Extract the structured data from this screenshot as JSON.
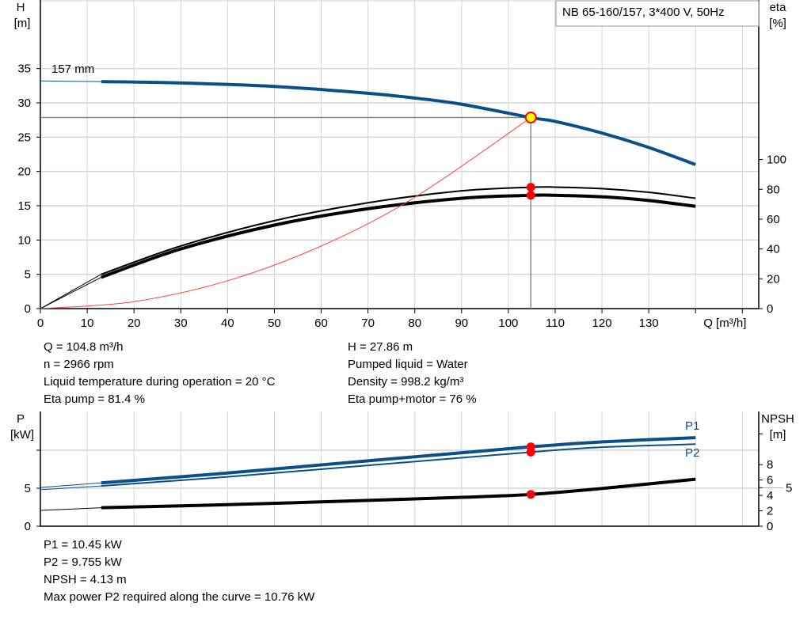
{
  "chart_data": [
    {
      "type": "line",
      "title": "NB 65-160/157, 3*400 V, 50Hz",
      "xlabel": "Q [m³/h]",
      "ylabel": "H\n[m]",
      "ylabel_lines": [
        "H",
        "[m]"
      ],
      "y2label_lines": [
        "eta",
        "[%]"
      ],
      "xlim": [
        0,
        153.5
      ],
      "ylim": [
        0,
        45
      ],
      "y2lim": [
        0,
        207
      ],
      "x_ticks": [
        0,
        10,
        20,
        30,
        40,
        50,
        60,
        70,
        80,
        90,
        100,
        110,
        120,
        130
      ],
      "y_ticks": [
        0,
        5,
        10,
        15,
        20,
        25,
        30,
        35
      ],
      "y2_ticks": [
        0,
        20,
        40,
        60,
        80,
        100
      ],
      "grid": true,
      "curve_label": "157 mm",
      "series": [
        {
          "id": "H",
          "axis": "left",
          "color": "#0b4f8a",
          "points": [
            [
              13,
              33.1
            ],
            [
              30,
              32.9
            ],
            [
              50,
              32.4
            ],
            [
              70,
              31.4
            ],
            [
              80,
              30.7
            ],
            [
              90,
              29.8
            ],
            [
              104.8,
              27.86
            ],
            [
              110,
              27.3
            ],
            [
              120,
              25.6
            ],
            [
              130,
              23.5
            ],
            [
              140,
              21.0
            ]
          ],
          "extension": [
            [
              0,
              33.2
            ],
            [
              13,
              33.1
            ]
          ]
        },
        {
          "id": "eta_pump",
          "axis": "right",
          "color": "#000000",
          "points": [
            [
              13,
              23
            ],
            [
              30,
              42
            ],
            [
              50,
              59
            ],
            [
              70,
              71
            ],
            [
              90,
              79
            ],
            [
              104.8,
              81.4
            ],
            [
              110,
              81.5
            ],
            [
              120,
              80.5
            ],
            [
              130,
              78
            ],
            [
              140,
              74
            ]
          ],
          "extension": [
            [
              0,
              0
            ],
            [
              13,
              23
            ]
          ]
        },
        {
          "id": "eta_pump_motor",
          "axis": "right",
          "color": "#000000",
          "points": [
            [
              13,
              21
            ],
            [
              30,
              40
            ],
            [
              50,
              56
            ],
            [
              70,
              67
            ],
            [
              90,
              74
            ],
            [
              104.8,
              76
            ],
            [
              110,
              76
            ],
            [
              120,
              75
            ],
            [
              130,
              72.5
            ],
            [
              140,
              68.6
            ]
          ],
          "extension": [
            [
              0,
              0
            ],
            [
              13,
              21
            ]
          ]
        },
        {
          "id": "system",
          "axis": "left",
          "color": "#ff4040",
          "points": [
            [
              0,
              0
            ],
            [
              20,
              1.01
            ],
            [
              40,
              4.06
            ],
            [
              60,
              9.13
            ],
            [
              80,
              16.23
            ],
            [
              104.8,
              27.86
            ]
          ]
        }
      ],
      "operating_point": {
        "Q": 104.8,
        "H": 27.86,
        "eta_pump": 81.4,
        "eta_pump_motor": 76
      }
    },
    {
      "type": "line",
      "ylabel_lines": [
        "P",
        "[kW]"
      ],
      "y2label_lines": [
        "NPSH",
        "[m]"
      ],
      "xlim": [
        0,
        153.5
      ],
      "ylim": [
        0,
        15.1
      ],
      "y2lim": [
        0,
        14.9
      ],
      "y_ticks": [
        0,
        5,
        10
      ],
      "y_tick_labels": [
        "0",
        "5",
        ""
      ],
      "y2_ticks": [
        0,
        2,
        4,
        5,
        6,
        8,
        12
      ],
      "y2_tick_labels": [
        "0",
        "2",
        "4",
        "5",
        "6",
        "8",
        ""
      ],
      "grid": true,
      "series": [
        {
          "id": "P1",
          "name": "P1",
          "axis": "left",
          "color": "#0b4f8a",
          "points": [
            [
              13,
              5.7
            ],
            [
              40,
              7.0
            ],
            [
              70,
              8.6
            ],
            [
              104.8,
              10.45
            ],
            [
              120,
              11.1
            ],
            [
              140,
              11.65
            ]
          ],
          "extension": [
            [
              0,
              5.1
            ],
            [
              13,
              5.7
            ]
          ]
        },
        {
          "id": "P2",
          "name": "P2",
          "axis": "left",
          "color": "#0b4f8a",
          "points": [
            [
              13,
              5.3
            ],
            [
              40,
              6.5
            ],
            [
              70,
              8.0
            ],
            [
              104.8,
              9.755
            ],
            [
              120,
              10.4
            ],
            [
              140,
              10.8
            ]
          ],
          "extension": [
            [
              0,
              4.8
            ],
            [
              13,
              5.3
            ]
          ]
        },
        {
          "id": "NPSH",
          "axis": "right",
          "color": "#000000",
          "points": [
            [
              13,
              2.4
            ],
            [
              40,
              2.8
            ],
            [
              70,
              3.35
            ],
            [
              90,
              3.75
            ],
            [
              104.8,
              4.13
            ],
            [
              120,
              4.9
            ],
            [
              140,
              6.1
            ]
          ],
          "extension": [
            [
              0,
              2.05
            ],
            [
              13,
              2.4
            ]
          ]
        }
      ],
      "operating_point": {
        "Q": 104.8,
        "P1": 10.45,
        "P2": 9.755,
        "NPSH": 4.13
      }
    }
  ],
  "info_top": {
    "left": [
      "Q = 104.8 m³/h",
      "n = 2966 rpm",
      "Liquid temperature during operation = 20 °C",
      "Eta pump = 81.4 %"
    ],
    "right": [
      "H = 27.86 m",
      "Pumped liquid = Water",
      "Density = 998.2 kg/m³",
      "Eta pump+motor = 76 %"
    ]
  },
  "info_bottom": [
    "P1 = 10.45 kW",
    "P2 = 9.755 kW",
    "NPSH = 4.13 m",
    "Max power P2 required along the curve = 10.76 kW"
  ]
}
